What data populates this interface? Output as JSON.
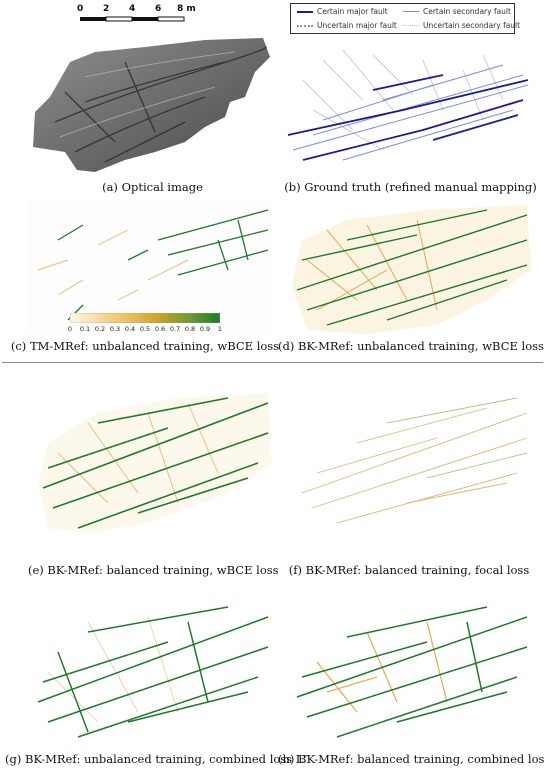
{
  "colors": {
    "certain_major": "#1a1a9c",
    "certain_secondary": "#7f8ae0",
    "uncertain_major": "#8c8cc8",
    "uncertain_secondary": "#b9bde8",
    "prob_high": "#1d7a2a",
    "prob_mid": "#c9a227",
    "prob_low": "#f7e6b0"
  },
  "scale_bar": {
    "ticks": [
      "0",
      "2",
      "4",
      "6",
      "8 m"
    ]
  },
  "legend": {
    "certain_major": "Certain major fault",
    "certain_secondary": "Certain secondary fault",
    "uncertain_major": "Uncertain major fault",
    "uncertain_secondary": "Uncertain secondary fault"
  },
  "colorbar": {
    "ticks": [
      "0",
      "0.1",
      "0.2",
      "0.3",
      "0.4",
      "0.5",
      "0.6",
      "0.7",
      "0.8",
      "0.9",
      "1"
    ]
  },
  "captions": {
    "a": "(a) Optical image",
    "b": "(b) Ground truth (refined manual mapping)",
    "c": "(c) TM-MRef: unbalanced training, wBCE loss",
    "d": "(d) BK-MRef: unbalanced training, wBCE loss",
    "e": "(e) BK-MRef: balanced training, wBCE loss",
    "f": "(f) BK-MRef: balanced training, focal loss",
    "g": "(g) BK-MRef: unbalanced training, combined loss L″",
    "h": "(h) BK-MRef: balanced training, combined loss L″"
  }
}
